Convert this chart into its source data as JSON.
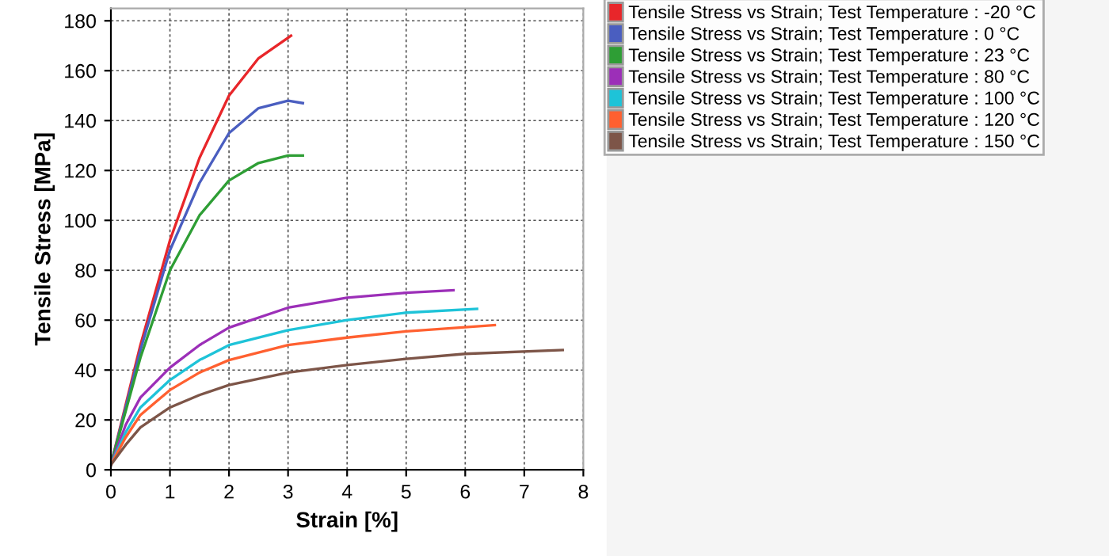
{
  "chart_data": {
    "type": "line",
    "xlabel": "Strain [%]",
    "ylabel": "Tensile Stress [MPa]",
    "xlim": [
      0,
      8
    ],
    "xticks": [
      0,
      1,
      2,
      3,
      4,
      5,
      6,
      7,
      8
    ],
    "ylim": [
      0,
      185
    ],
    "yticks": [
      0,
      20,
      40,
      60,
      80,
      100,
      120,
      140,
      160,
      180
    ],
    "grid": true,
    "legend": "right",
    "line_style": "solid",
    "series": [
      {
        "name": "Tensile Stress vs Strain; Test Temperature : -20 °C",
        "color": "#e8262a",
        "x": [
          0,
          0.5,
          1,
          1.5,
          2,
          2.5,
          3.05
        ],
        "values": [
          2,
          50,
          92,
          125,
          150,
          165,
          174
        ]
      },
      {
        "name": "Tensile Stress vs Strain; Test Temperature : 0 °C",
        "color": "#4a5ec0",
        "x": [
          0,
          0.5,
          1,
          1.5,
          2,
          2.5,
          3,
          3.25
        ],
        "values": [
          2,
          48,
          88,
          115,
          135,
          145,
          148,
          147
        ]
      },
      {
        "name": "Tensile Stress vs Strain; Test Temperature : 23 °C",
        "color": "#2e9e35",
        "x": [
          0,
          0.5,
          1,
          1.5,
          2,
          2.5,
          3,
          3.25
        ],
        "values": [
          2,
          45,
          80,
          102,
          116,
          123,
          126,
          126
        ]
      },
      {
        "name": "Tensile Stress vs Strain; Test Temperature : 80 °C",
        "color": "#9c2fb8",
        "x": [
          0,
          0.25,
          0.5,
          1,
          1.5,
          2,
          3,
          4,
          5,
          5.8
        ],
        "values": [
          2,
          18,
          29,
          41,
          50,
          57,
          65,
          69,
          71,
          72
        ]
      },
      {
        "name": "Tensile Stress vs Strain; Test Temperature : 100 °C",
        "color": "#1ec3d8",
        "x": [
          0,
          0.25,
          0.5,
          1,
          1.5,
          2,
          3,
          4,
          5,
          6.2
        ],
        "values": [
          2,
          15,
          25,
          36,
          44,
          50,
          56,
          60,
          63,
          64.5
        ]
      },
      {
        "name": "Tensile Stress vs Strain; Test Temperature : 120 °C",
        "color": "#ff6030",
        "x": [
          0,
          0.25,
          0.5,
          1,
          1.5,
          2,
          3,
          4,
          5,
          6.5
        ],
        "values": [
          2,
          13,
          22,
          32,
          39,
          44,
          50,
          53,
          55.5,
          58
        ]
      },
      {
        "name": "Tensile Stress vs Strain; Test Temperature : 150 °C",
        "color": "#7d5548",
        "x": [
          0,
          0.25,
          0.5,
          1,
          1.5,
          2,
          3,
          4,
          5,
          6,
          7.65
        ],
        "values": [
          2,
          10,
          17,
          25,
          30,
          34,
          39,
          42,
          44.5,
          46.5,
          48
        ]
      }
    ]
  }
}
